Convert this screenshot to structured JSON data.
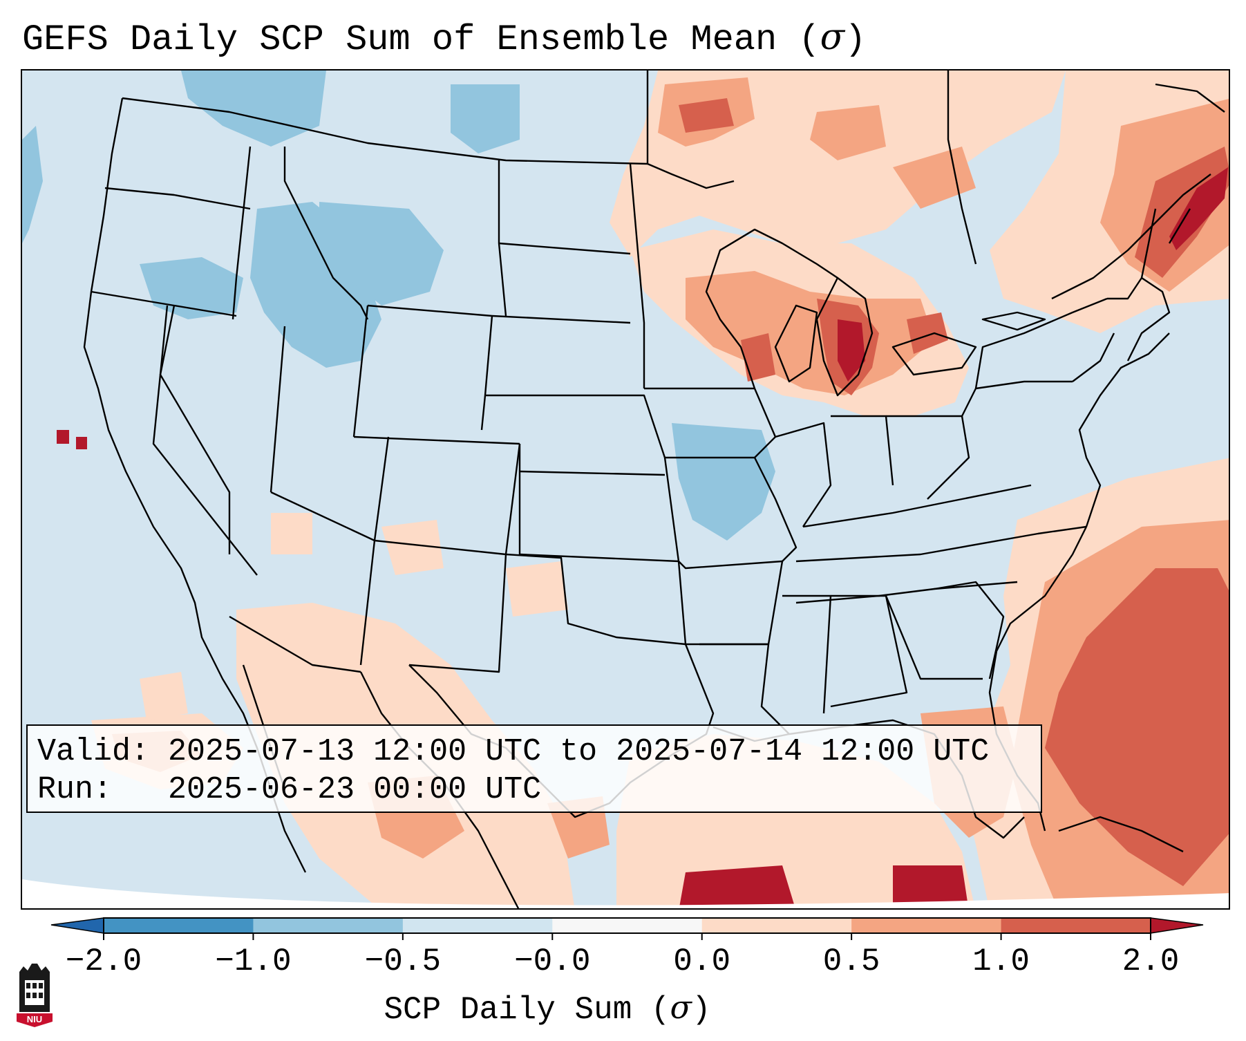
{
  "title": {
    "prefix": "GEFS Daily SCP Sum of Ensemble Mean (",
    "symbol": "σ",
    "suffix": ")"
  },
  "info_box": {
    "valid_line": "Valid: 2025-07-13 12:00 UTC to 2025-07-14 12:00 UTC",
    "run_line": "Run:   2025-06-23 00:00 UTC"
  },
  "colorbar": {
    "label_prefix": "SCP Daily Sum (",
    "label_symbol": "σ",
    "label_suffix": ")",
    "tick_labels": [
      "−2.0",
      "−1.0",
      "−0.5",
      "−0.0",
      "0.0",
      "0.5",
      "1.0",
      "2.0"
    ],
    "bins": [
      {
        "from": -2.0,
        "to": -1.0,
        "color": "#4393c3"
      },
      {
        "from": -1.0,
        "to": -0.5,
        "color": "#92c5de"
      },
      {
        "from": -0.5,
        "to": -0.0,
        "color": "#d1e5f0"
      },
      {
        "from": -0.0,
        "to": 0.0,
        "color": "#f7f7f7"
      },
      {
        "from": 0.0,
        "to": 0.5,
        "color": "#fddbc7"
      },
      {
        "from": 0.5,
        "to": 1.0,
        "color": "#f4a582"
      },
      {
        "from": 1.0,
        "to": 2.0,
        "color": "#d6604d"
      }
    ],
    "under_color": "#2166ac",
    "over_color": "#b2182b"
  },
  "map": {
    "background_color": "#d4e5f0",
    "outline_color": "#000000",
    "regions": [
      {
        "name": "pacific-northwest-idaho",
        "level": "below"
      },
      {
        "name": "montana",
        "level": "below"
      },
      {
        "name": "missouri",
        "level": "below"
      },
      {
        "name": "great-lakes",
        "level": "above"
      },
      {
        "name": "new-england",
        "level": "above"
      },
      {
        "name": "western-atlantic",
        "level": "above"
      },
      {
        "name": "gulf-mexico-caribbean",
        "level": "above"
      },
      {
        "name": "canadian-prairies",
        "level": "above"
      }
    ]
  },
  "logo": {
    "text": "NIU"
  }
}
